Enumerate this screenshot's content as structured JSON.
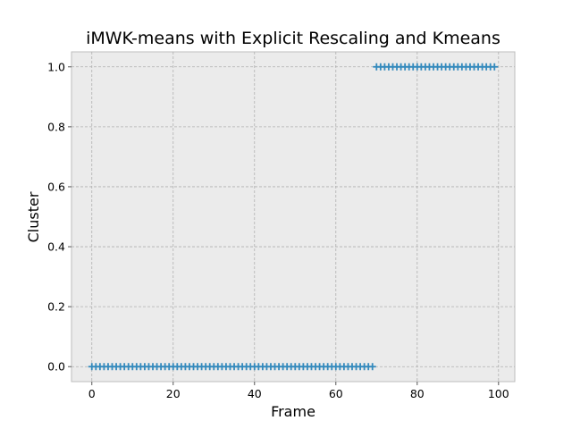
{
  "chart_data": {
    "type": "scatter",
    "title": "iMWK-means with Explicit Rescaling and Kmeans",
    "xlabel": "Frame",
    "ylabel": "Cluster",
    "xlim": [
      -5,
      104
    ],
    "ylim": [
      -0.05,
      1.05
    ],
    "xticks": [
      0,
      20,
      40,
      60,
      80,
      100
    ],
    "yticks": [
      0.0,
      0.2,
      0.4,
      0.6,
      0.8,
      1.0
    ],
    "xtick_labels": [
      "0",
      "20",
      "40",
      "60",
      "80",
      "100"
    ],
    "ytick_labels": [
      "0.0",
      "0.2",
      "0.4",
      "0.6",
      "0.8",
      "1.0"
    ],
    "grid": true,
    "marker": "plus",
    "series": [
      {
        "points": [
          {
            "x_range": [
              0,
              69
            ],
            "y": 0
          },
          {
            "x_range": [
              70,
              99
            ],
            "y": 1
          }
        ]
      }
    ]
  },
  "colors": {
    "background": "#ffffff",
    "plot_background": "#ebebeb",
    "grid": "#b0b0b0",
    "axes_edge": "#bcbcbc",
    "marker": "#348abd"
  }
}
